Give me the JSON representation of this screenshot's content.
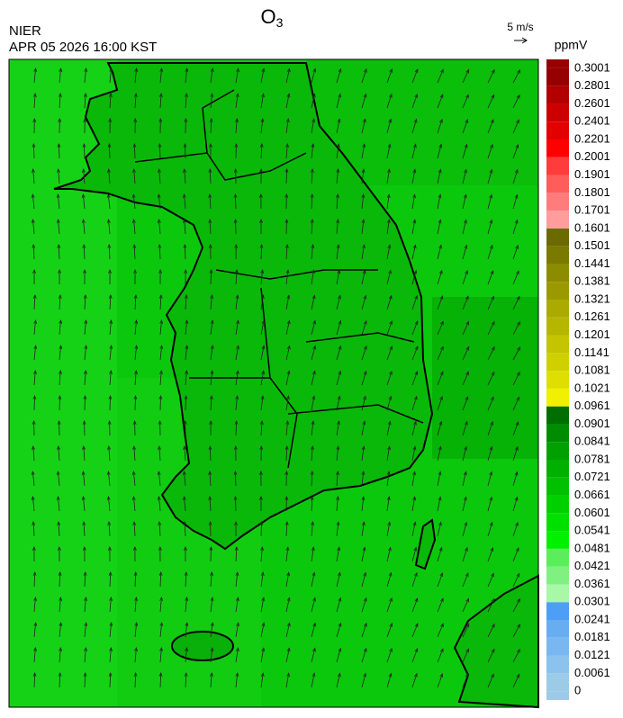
{
  "header": {
    "title": {
      "text": "O",
      "subscript": "3"
    },
    "agency": "NIER",
    "datetime": "APR 05 2026 16:00 KST",
    "vector_scale": "5 m/s"
  },
  "colorbar": {
    "unit": "ppmV",
    "levels": [
      0,
      0.0061,
      0.0121,
      0.0181,
      0.0241,
      0.0301,
      0.0361,
      0.0421,
      0.0481,
      0.0541,
      0.0601,
      0.0661,
      0.0721,
      0.0781,
      0.0841,
      0.0901,
      0.0961,
      0.1021,
      0.1081,
      0.1141,
      0.1201,
      0.1261,
      0.1321,
      0.1381,
      0.1441,
      0.1501,
      0.1601,
      0.1701,
      0.1801,
      0.1901,
      0.2001,
      0.2201,
      0.2401,
      0.2601,
      0.2801,
      0.3001
    ],
    "colors": [
      "#9ccbe8",
      "#8cc2ee",
      "#7ab7f0",
      "#68adf2",
      "#4d9ff6",
      "#a8f8a8",
      "#80f080",
      "#5aee5a",
      "#00f000",
      "#00e000",
      "#00d000",
      "#00c000",
      "#00b000",
      "#00a000",
      "#008c00",
      "#006e00",
      "#f0f000",
      "#dede00",
      "#d0d000",
      "#c4c400",
      "#b6b600",
      "#aaaa00",
      "#9a9a00",
      "#8c8c00",
      "#7a7a00",
      "#6a6a00",
      "#ff9c9c",
      "#ff7c7c",
      "#ff5c5c",
      "#ff3c3c",
      "#ff0000",
      "#e40000",
      "#cc0000",
      "#b20000",
      "#960000"
    ]
  }
}
